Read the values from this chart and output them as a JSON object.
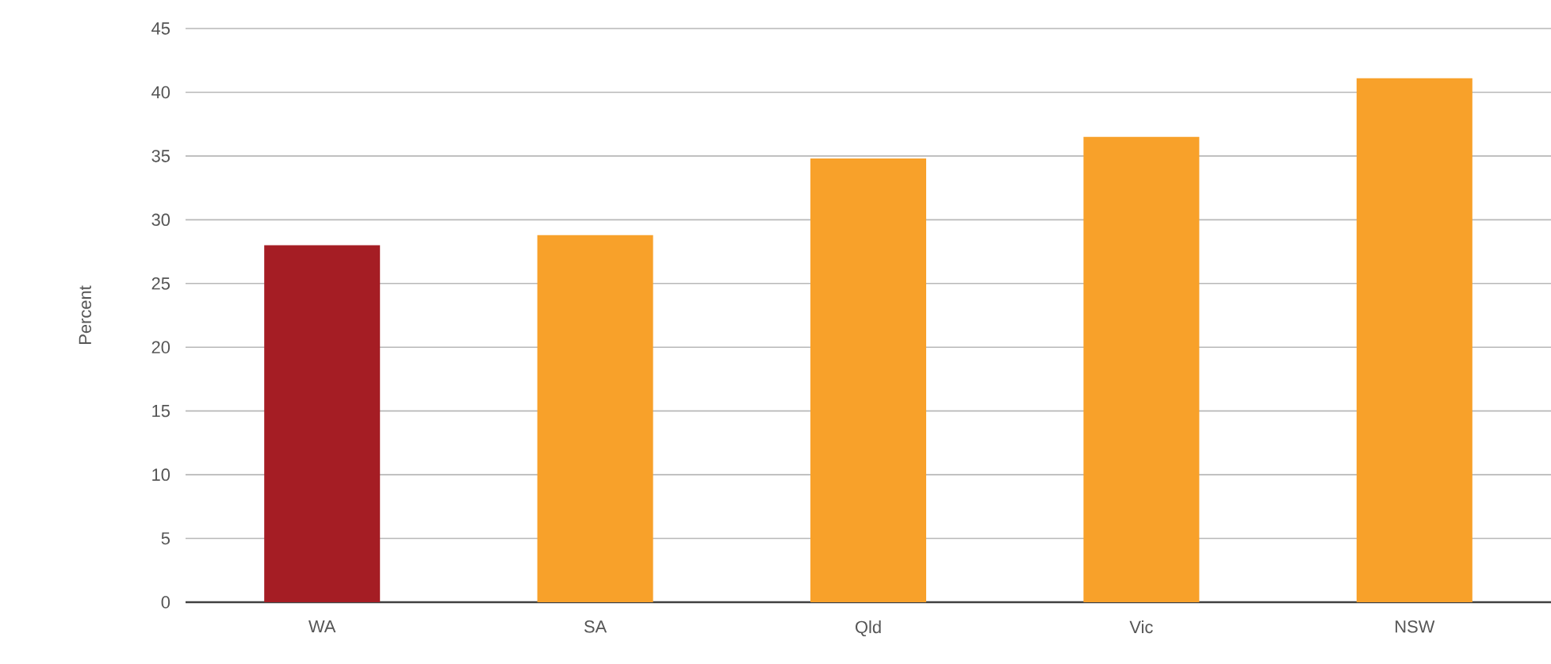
{
  "chart_data": {
    "type": "bar",
    "ylabel": "Percent",
    "categories": [
      "WA",
      "SA",
      "Qld",
      "Vic",
      "NSW"
    ],
    "values": [
      28,
      28.8,
      34.8,
      36.5,
      41.1
    ],
    "colors": [
      "#a51d24",
      "#f8a12a",
      "#f8a12a",
      "#f8a12a",
      "#f8a12a"
    ],
    "ylim": [
      0,
      45
    ],
    "yticks": [
      0,
      5,
      10,
      15,
      20,
      25,
      30,
      35,
      40,
      45
    ],
    "grid": "y"
  }
}
